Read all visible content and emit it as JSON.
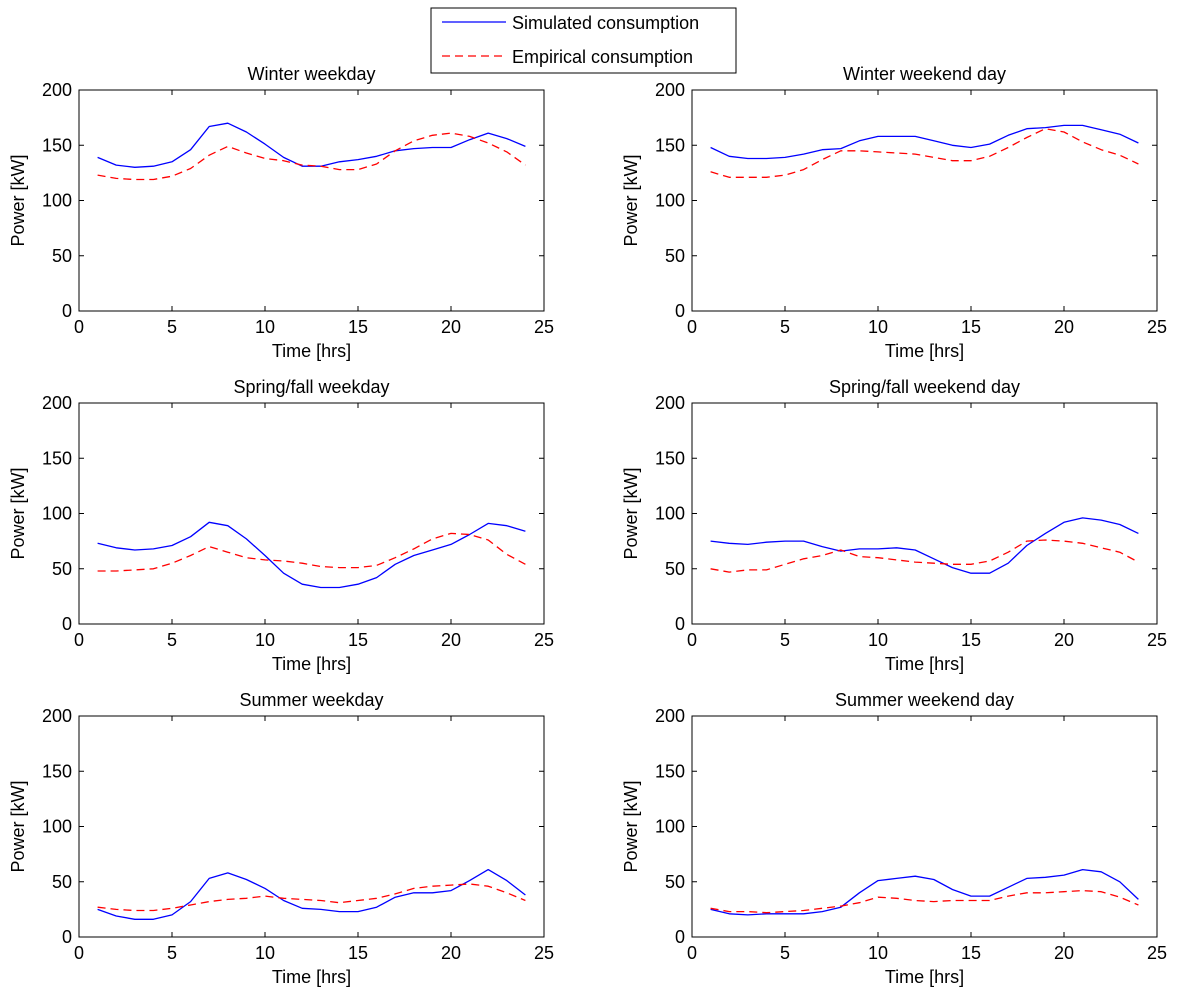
{
  "legend": {
    "simulated_label": "Simulated consumption",
    "empirical_label": "Empirical consumption",
    "simulated_color": "#0000ff",
    "empirical_color": "#ff0000"
  },
  "chart_data": [
    {
      "type": "line",
      "title": "Winter weekday",
      "xlabel": "Time [hrs]",
      "ylabel": "Power [kW]",
      "xlim": [
        0,
        25
      ],
      "ylim": [
        0,
        200
      ],
      "xticks": [
        0,
        5,
        10,
        15,
        20,
        25
      ],
      "xtick_labels": [
        "0",
        "5",
        "10",
        "15",
        "20",
        "25"
      ],
      "yticks": [
        0,
        50,
        100,
        150,
        200
      ],
      "ytick_labels": [
        "0",
        "50",
        "100",
        "150",
        "200"
      ],
      "x": [
        1,
        2,
        3,
        4,
        5,
        6,
        7,
        8,
        9,
        10,
        11,
        12,
        13,
        14,
        15,
        16,
        17,
        18,
        19,
        20,
        21,
        22,
        23,
        24
      ],
      "series": [
        {
          "name": "Simulated consumption",
          "values": [
            139,
            132,
            130,
            131,
            135,
            146,
            167,
            170,
            162,
            151,
            139,
            131,
            131,
            135,
            137,
            140,
            145,
            147,
            148,
            148,
            155,
            161,
            156,
            149
          ]
        },
        {
          "name": "Empirical consumption",
          "values": [
            123,
            120,
            119,
            119,
            122,
            129,
            141,
            149,
            143,
            138,
            136,
            132,
            131,
            128,
            128,
            133,
            145,
            154,
            159,
            161,
            158,
            152,
            144,
            132
          ]
        }
      ]
    },
    {
      "type": "line",
      "title": "Winter weekend day",
      "xlabel": "Time [hrs]",
      "ylabel": "Power [kW]",
      "xlim": [
        0,
        25
      ],
      "ylim": [
        0,
        200
      ],
      "xticks": [
        0,
        5,
        10,
        15,
        20,
        25
      ],
      "xtick_labels": [
        "0",
        "5",
        "10",
        "15",
        "20",
        "25"
      ],
      "yticks": [
        0,
        50,
        100,
        150,
        200
      ],
      "ytick_labels": [
        "0",
        "50",
        "100",
        "150",
        "200"
      ],
      "x": [
        1,
        2,
        3,
        4,
        5,
        6,
        7,
        8,
        9,
        10,
        11,
        12,
        13,
        14,
        15,
        16,
        17,
        18,
        19,
        20,
        21,
        22,
        23,
        24
      ],
      "series": [
        {
          "name": "Simulated consumption",
          "values": [
            148,
            140,
            138,
            138,
            139,
            142,
            146,
            147,
            154,
            158,
            158,
            158,
            154,
            150,
            148,
            151,
            159,
            165,
            166,
            168,
            168,
            164,
            160,
            152
          ]
        },
        {
          "name": "Empirical consumption",
          "values": [
            126,
            121,
            121,
            121,
            123,
            128,
            137,
            145,
            145,
            144,
            143,
            142,
            139,
            136,
            136,
            140,
            148,
            157,
            165,
            162,
            153,
            146,
            141,
            133
          ]
        }
      ]
    },
    {
      "type": "line",
      "title": "Spring/fall weekday",
      "xlabel": "Time [hrs]",
      "ylabel": "Power [kW]",
      "xlim": [
        0,
        25
      ],
      "ylim": [
        0,
        200
      ],
      "xticks": [
        0,
        5,
        10,
        15,
        20,
        25
      ],
      "xtick_labels": [
        "0",
        "5",
        "10",
        "15",
        "20",
        "25"
      ],
      "yticks": [
        0,
        50,
        100,
        150,
        200
      ],
      "ytick_labels": [
        "0",
        "50",
        "100",
        "150",
        "200"
      ],
      "x": [
        1,
        2,
        3,
        4,
        5,
        6,
        7,
        8,
        9,
        10,
        11,
        12,
        13,
        14,
        15,
        16,
        17,
        18,
        19,
        20,
        21,
        22,
        23,
        24
      ],
      "series": [
        {
          "name": "Simulated consumption",
          "values": [
            73,
            69,
            67,
            68,
            71,
            79,
            92,
            89,
            77,
            62,
            46,
            36,
            33,
            33,
            36,
            42,
            54,
            62,
            67,
            72,
            81,
            91,
            89,
            84
          ]
        },
        {
          "name": "Empirical consumption",
          "values": [
            48,
            48,
            49,
            50,
            55,
            62,
            70,
            65,
            60,
            58,
            57,
            55,
            52,
            51,
            51,
            53,
            60,
            68,
            77,
            82,
            81,
            76,
            63,
            54
          ]
        }
      ]
    },
    {
      "type": "line",
      "title": "Spring/fall weekend day",
      "xlabel": "Time [hrs]",
      "ylabel": "Power [kW]",
      "xlim": [
        0,
        25
      ],
      "ylim": [
        0,
        200
      ],
      "xticks": [
        0,
        5,
        10,
        15,
        20,
        25
      ],
      "xtick_labels": [
        "0",
        "5",
        "10",
        "15",
        "20",
        "25"
      ],
      "yticks": [
        0,
        50,
        100,
        150,
        200
      ],
      "ytick_labels": [
        "0",
        "50",
        "100",
        "150",
        "200"
      ],
      "x": [
        1,
        2,
        3,
        4,
        5,
        6,
        7,
        8,
        9,
        10,
        11,
        12,
        13,
        14,
        15,
        16,
        17,
        18,
        19,
        20,
        21,
        22,
        23,
        24
      ],
      "series": [
        {
          "name": "Simulated consumption",
          "values": [
            75,
            73,
            72,
            74,
            75,
            75,
            70,
            66,
            68,
            68,
            69,
            67,
            59,
            51,
            46,
            46,
            55,
            71,
            82,
            92,
            96,
            94,
            90,
            82
          ]
        },
        {
          "name": "Empirical consumption",
          "values": [
            50,
            47,
            49,
            49,
            54,
            59,
            62,
            67,
            61,
            60,
            58,
            56,
            55,
            54,
            54,
            57,
            65,
            75,
            76,
            75,
            73,
            69,
            65,
            56
          ]
        }
      ]
    },
    {
      "type": "line",
      "title": "Summer weekday",
      "xlabel": "Time [hrs]",
      "ylabel": "Power [kW]",
      "xlim": [
        0,
        25
      ],
      "ylim": [
        0,
        200
      ],
      "xticks": [
        0,
        5,
        10,
        15,
        20,
        25
      ],
      "xtick_labels": [
        "0",
        "5",
        "10",
        "15",
        "20",
        "25"
      ],
      "yticks": [
        0,
        50,
        100,
        150,
        200
      ],
      "ytick_labels": [
        "0",
        "50",
        "100",
        "150",
        "200"
      ],
      "x": [
        1,
        2,
        3,
        4,
        5,
        6,
        7,
        8,
        9,
        10,
        11,
        12,
        13,
        14,
        15,
        16,
        17,
        18,
        19,
        20,
        21,
        22,
        23,
        24
      ],
      "series": [
        {
          "name": "Simulated consumption",
          "values": [
            25,
            19,
            16,
            16,
            20,
            32,
            53,
            58,
            52,
            44,
            33,
            26,
            25,
            23,
            23,
            27,
            36,
            40,
            40,
            42,
            51,
            61,
            51,
            38
          ]
        },
        {
          "name": "Empirical consumption",
          "values": [
            27,
            25,
            24,
            24,
            26,
            29,
            32,
            34,
            35,
            37,
            35,
            34,
            33,
            31,
            33,
            35,
            39,
            44,
            46,
            47,
            48,
            46,
            40,
            33
          ]
        }
      ]
    },
    {
      "type": "line",
      "title": "Summer weekend day",
      "xlabel": "Time [hrs]",
      "ylabel": "Power [kW]",
      "xlim": [
        0,
        25
      ],
      "ylim": [
        0,
        200
      ],
      "xticks": [
        0,
        5,
        10,
        15,
        20,
        25
      ],
      "xtick_labels": [
        "0",
        "5",
        "10",
        "15",
        "20",
        "25"
      ],
      "yticks": [
        0,
        50,
        100,
        150,
        200
      ],
      "ytick_labels": [
        "0",
        "50",
        "100",
        "150",
        "200"
      ],
      "x": [
        1,
        2,
        3,
        4,
        5,
        6,
        7,
        8,
        9,
        10,
        11,
        12,
        13,
        14,
        15,
        16,
        17,
        18,
        19,
        20,
        21,
        22,
        23,
        24
      ],
      "series": [
        {
          "name": "Simulated consumption",
          "values": [
            25,
            21,
            20,
            21,
            21,
            21,
            23,
            27,
            40,
            51,
            53,
            55,
            52,
            43,
            37,
            37,
            45,
            53,
            54,
            56,
            61,
            59,
            50,
            34
          ]
        },
        {
          "name": "Empirical consumption",
          "values": [
            26,
            23,
            23,
            22,
            23,
            24,
            26,
            28,
            31,
            36,
            35,
            33,
            32,
            33,
            33,
            33,
            37,
            40,
            40,
            41,
            42,
            41,
            36,
            29
          ]
        }
      ]
    }
  ]
}
